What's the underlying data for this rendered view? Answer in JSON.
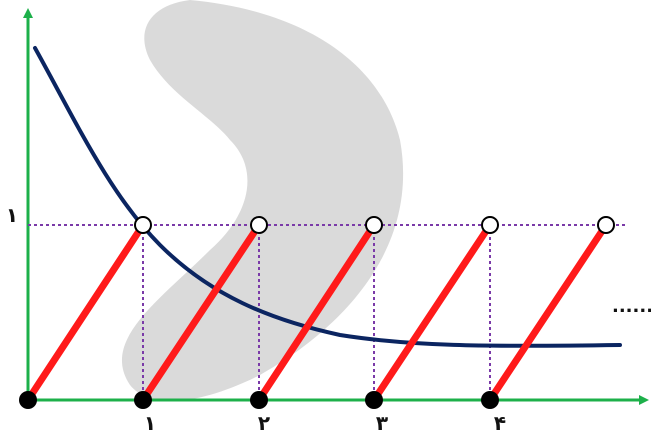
{
  "diagram": {
    "y_tick_label": "۱",
    "x_tick_labels": [
      "۱",
      "۲",
      "۳",
      "۴"
    ],
    "continuation": "......",
    "colors": {
      "axis": "#1db04a",
      "sawtooth": "#ff1a1a",
      "decay_curve": "#0b2561",
      "guide_lines": "#7a3aa8",
      "filled_marker": "#000000",
      "open_marker": "#ffffff",
      "watermark": "#d4d4d4"
    }
  }
}
